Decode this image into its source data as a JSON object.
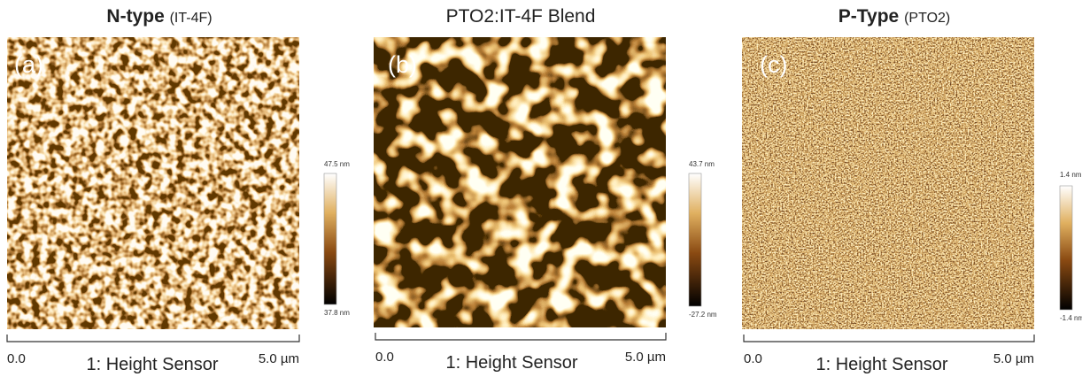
{
  "panels": [
    {
      "title_bold": "N-type",
      "title_rest": "(IT-4F)",
      "label": "(a)",
      "scale_max": "47.5 nm",
      "scale_min": "37.8 nm",
      "axis_start": "0.0",
      "axis_end": "5.0 µm",
      "caption": "1: Height Sensor"
    },
    {
      "title_rest": "PTO2:IT-4F Blend",
      "label": "(b)",
      "scale_max": "43.7 nm",
      "scale_min": "-27.2 nm",
      "axis_start": "0.0",
      "axis_end": "5.0 µm",
      "caption": "1: Height Sensor"
    },
    {
      "title_bold": "P-Type",
      "title_rest": "(PTO2)",
      "label": "(c)",
      "scale_max": "1.4 nm",
      "scale_min": "-1.4 nm",
      "axis_start": "0.0",
      "axis_end": "5.0 µm",
      "caption": "1: Height Sensor"
    }
  ]
}
